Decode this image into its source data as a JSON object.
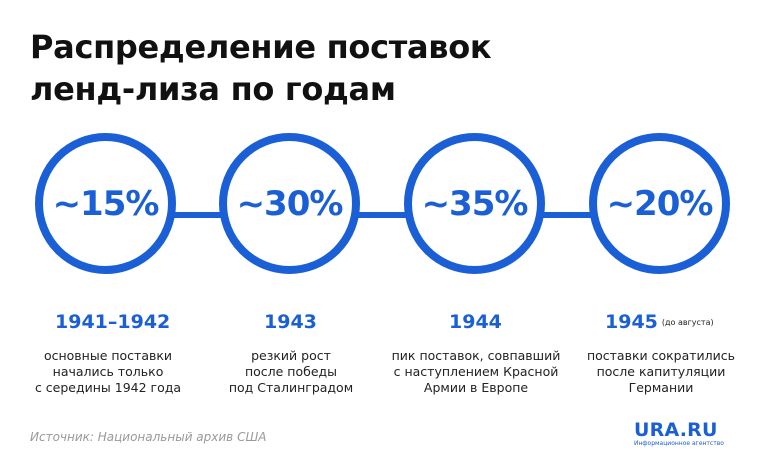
{
  "title": {
    "line1": "Распределение поставок",
    "line2": "ленд-лиза по годам"
  },
  "colors": {
    "accent": "#1a5fd6",
    "text": "#111111"
  },
  "periods": [
    {
      "percent": "~15%",
      "year": "1941–1942",
      "note": "",
      "description": "основные поставки\nначались только\nс середины 1942 года"
    },
    {
      "percent": "~30%",
      "year": "1943",
      "note": "",
      "description": "резкий рост\nпосле победы\nпод Сталинградом"
    },
    {
      "percent": "~35%",
      "year": "1944",
      "note": "",
      "description": "пик поставок, совпавший\nс наступлением Красной\nАрмии в Европе"
    },
    {
      "percent": "~20%",
      "year": "1945",
      "note": "(до августа)",
      "description": "поставки сократились\nпосле капитуляции\nГермании"
    }
  ],
  "source": "Источник: Национальный архив США",
  "logo": {
    "name": "URA.RU",
    "tagline": "Информационное агентство"
  }
}
